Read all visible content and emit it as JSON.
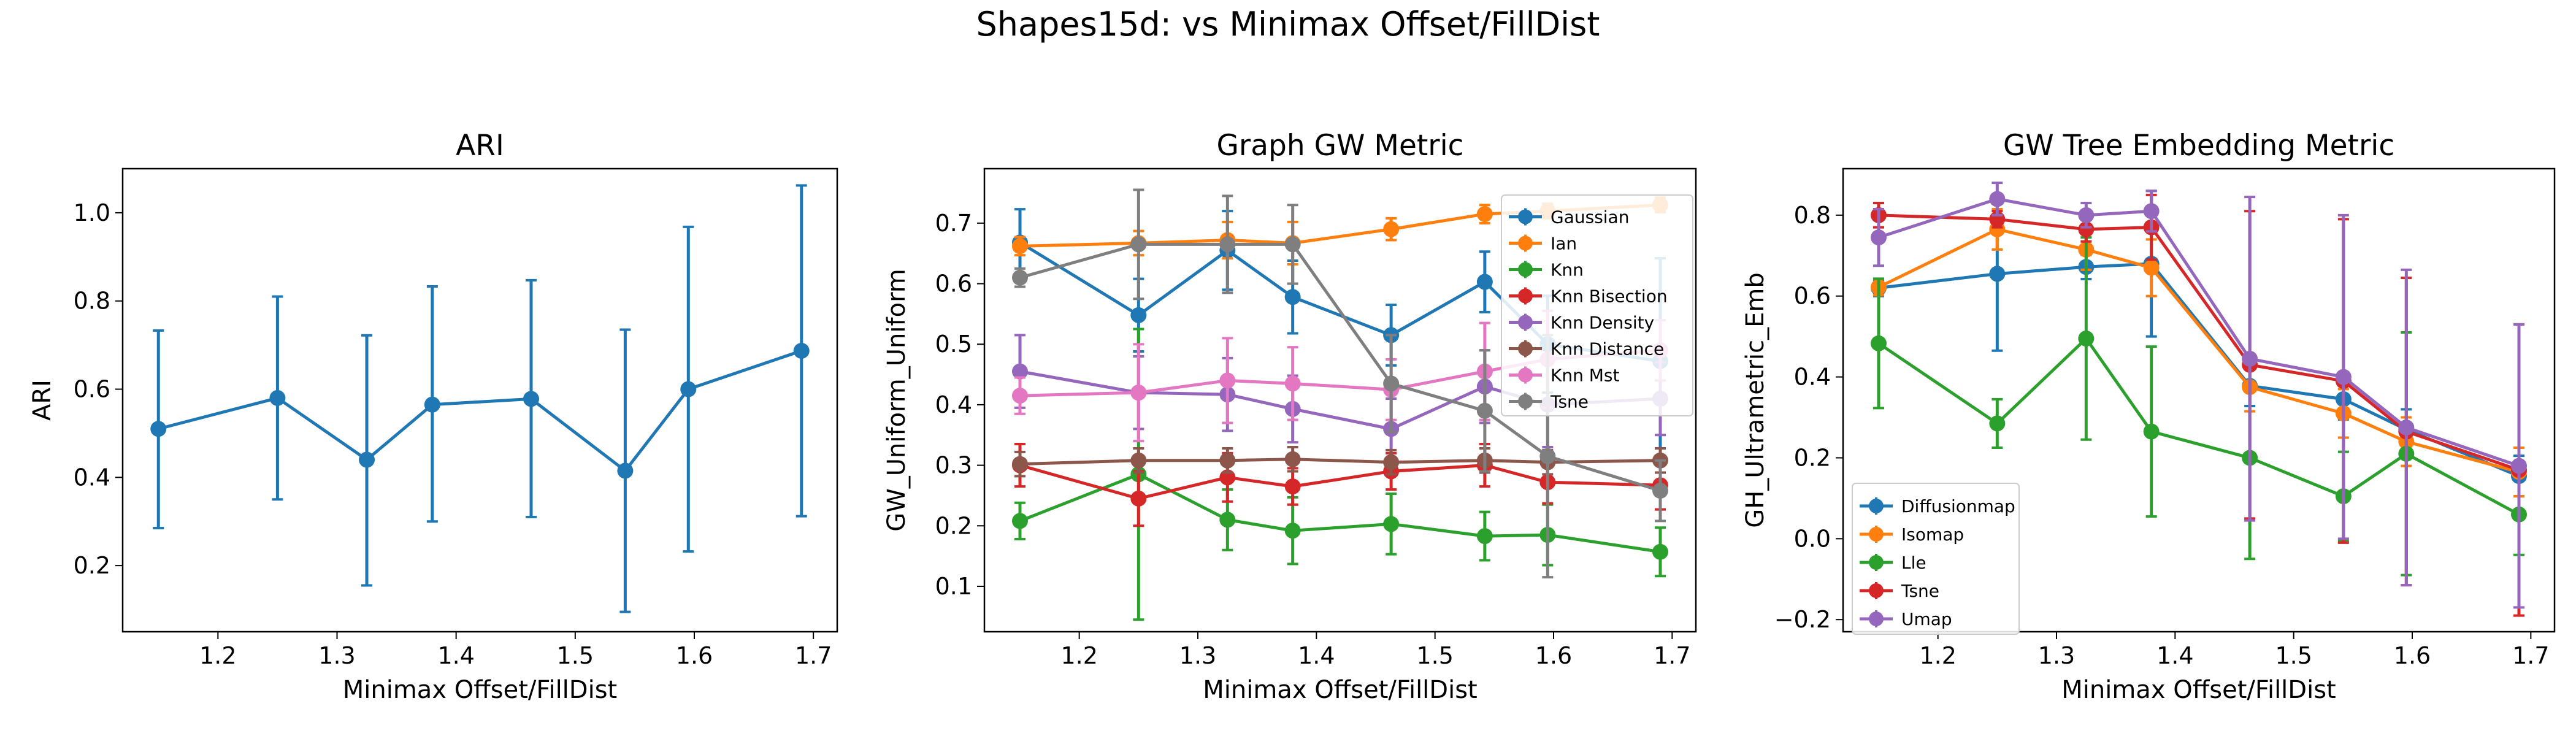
{
  "figure": {
    "title": "Shapes15d: vs Minimax Offset/FillDist"
  },
  "chart_data": [
    {
      "type": "line",
      "title": "ARI",
      "xlabel": "Minimax Offset/FillDist",
      "ylabel": "ARI",
      "xlim": [
        1.12,
        1.72
      ],
      "ylim": [
        0.05,
        1.1
      ],
      "xticks": [
        "1.2",
        "1.3",
        "1.4",
        "1.5",
        "1.6",
        "1.7"
      ],
      "yticks": [
        "0.2",
        "0.4",
        "0.6",
        "0.8",
        "1.0"
      ],
      "x": [
        1.15,
        1.25,
        1.325,
        1.38,
        1.463,
        1.542,
        1.595,
        1.69
      ],
      "series": [
        {
          "color": "#1f77b4",
          "values": [
            0.51,
            0.58,
            0.44,
            0.565,
            0.578,
            0.415,
            0.6,
            0.687
          ],
          "err_low": [
            0.285,
            0.35,
            0.155,
            0.3,
            0.31,
            0.095,
            0.232,
            0.312
          ],
          "err_high": [
            0.733,
            0.81,
            0.722,
            0.833,
            0.847,
            0.735,
            0.968,
            1.062
          ]
        }
      ]
    },
    {
      "type": "line",
      "title": "Graph GW Metric",
      "xlabel": "Minimax Offset/FillDist",
      "ylabel": "GW_Uniform_Uniform",
      "xlim": [
        1.12,
        1.72
      ],
      "ylim": [
        0.025,
        0.79
      ],
      "xticks": [
        "1.2",
        "1.3",
        "1.4",
        "1.5",
        "1.6",
        "1.7"
      ],
      "yticks": [
        "0.1",
        "0.2",
        "0.3",
        "0.4",
        "0.5",
        "0.6",
        "0.7"
      ],
      "legend": "top-right",
      "x": [
        1.15,
        1.25,
        1.325,
        1.38,
        1.463,
        1.542,
        1.595,
        1.69
      ],
      "series": [
        {
          "name": "Gaussian",
          "color": "#1f77b4",
          "values": [
            0.668,
            0.548,
            0.655,
            0.578,
            0.515,
            0.603,
            0.5,
            0.472
          ],
          "err": [
            0.055,
            0.06,
            0.065,
            0.06,
            0.05,
            0.05,
            0.08,
            0.17
          ]
        },
        {
          "name": "Ian",
          "color": "#ff7f0e",
          "values": [
            0.662,
            0.667,
            0.672,
            0.667,
            0.69,
            0.715,
            0.72,
            0.73
          ],
          "err": [
            0.015,
            0.02,
            0.03,
            0.035,
            0.018,
            0.015,
            0.012,
            0.012
          ]
        },
        {
          "name": "Knn",
          "color": "#2ca02c",
          "values": [
            0.208,
            0.285,
            0.21,
            0.192,
            0.203,
            0.183,
            0.185,
            0.157
          ],
          "err": [
            0.03,
            0.24,
            0.05,
            0.055,
            0.05,
            0.04,
            0.05,
            0.04
          ]
        },
        {
          "name": "Knn Bisection",
          "color": "#d62728",
          "values": [
            0.3,
            0.245,
            0.28,
            0.265,
            0.29,
            0.3,
            0.272,
            0.267
          ],
          "err": [
            0.035,
            0.045,
            0.04,
            0.03,
            0.03,
            0.035,
            0.035,
            0.04
          ]
        },
        {
          "name": "Knn Density",
          "color": "#9467bd",
          "values": [
            0.455,
            0.42,
            0.417,
            0.393,
            0.36,
            0.43,
            0.4,
            0.41
          ],
          "err": [
            0.06,
            0.06,
            0.06,
            0.055,
            0.05,
            0.06,
            0.07,
            0.06
          ]
        },
        {
          "name": "Knn Distance",
          "color": "#8c564b",
          "values": [
            0.302,
            0.308,
            0.308,
            0.31,
            0.305,
            0.308,
            0.305,
            0.308
          ],
          "err": [
            0.02,
            0.02,
            0.02,
            0.02,
            0.02,
            0.02,
            0.02,
            0.02
          ]
        },
        {
          "name": "Knn Mst",
          "color": "#e377c2",
          "values": [
            0.415,
            0.42,
            0.44,
            0.435,
            0.425,
            0.455,
            0.475,
            0.49
          ],
          "err": [
            0.03,
            0.08,
            0.07,
            0.06,
            0.05,
            0.08,
            0.08,
            0.05
          ]
        },
        {
          "name": "Tsne",
          "color": "#7f7f7f",
          "values": [
            0.61,
            0.665,
            0.665,
            0.665,
            0.435,
            0.39,
            0.315,
            0.258
          ],
          "err": [
            0.015,
            0.09,
            0.08,
            0.065,
            0.08,
            0.1,
            0.2,
            0.05
          ]
        }
      ]
    },
    {
      "type": "line",
      "title": "GW Tree Embedding Metric",
      "xlabel": "Minimax Offset/FillDist",
      "ylabel": "GH_Ultrametric_Emb",
      "xlim": [
        1.12,
        1.72
      ],
      "ylim": [
        -0.23,
        0.915
      ],
      "xticks": [
        "1.2",
        "1.3",
        "1.4",
        "1.5",
        "1.6",
        "1.7"
      ],
      "yticks": [
        "−0.2",
        "0.0",
        "0.2",
        "0.4",
        "0.6",
        "0.8"
      ],
      "legend": "lower-left",
      "x": [
        1.15,
        1.25,
        1.325,
        1.38,
        1.463,
        1.542,
        1.595,
        1.69
      ],
      "series": [
        {
          "name": "Diffusionmap",
          "color": "#1f77b4",
          "values": [
            0.62,
            0.655,
            0.672,
            0.68,
            0.378,
            0.345,
            0.27,
            0.155
          ],
          "err": [
            0.02,
            0.19,
            0.03,
            0.18,
            0.05,
            0.05,
            0.05,
            0.05
          ]
        },
        {
          "name": "Isomap",
          "color": "#ff7f0e",
          "values": [
            0.622,
            0.765,
            0.715,
            0.67,
            0.375,
            0.31,
            0.24,
            0.165
          ],
          "err": [
            0.02,
            0.05,
            0.05,
            0.07,
            0.06,
            0.06,
            0.06,
            0.06
          ]
        },
        {
          "name": "Lle",
          "color": "#2ca02c",
          "values": [
            0.483,
            0.285,
            0.495,
            0.265,
            0.2,
            0.105,
            0.21,
            0.06
          ],
          "err": [
            0.16,
            0.06,
            0.25,
            0.21,
            0.25,
            0.11,
            0.3,
            0.1
          ]
        },
        {
          "name": "Tsne",
          "color": "#d62728",
          "values": [
            0.8,
            0.79,
            0.765,
            0.77,
            0.43,
            0.39,
            0.265,
            0.17
          ],
          "err": [
            0.03,
            0.02,
            0.03,
            0.08,
            0.38,
            0.4,
            0.38,
            0.36
          ]
        },
        {
          "name": "Umap",
          "color": "#9467bd",
          "values": [
            0.745,
            0.84,
            0.8,
            0.81,
            0.445,
            0.4,
            0.275,
            0.18
          ],
          "err": [
            0.07,
            0.04,
            0.03,
            0.05,
            0.4,
            0.4,
            0.39,
            0.35
          ]
        }
      ]
    }
  ]
}
